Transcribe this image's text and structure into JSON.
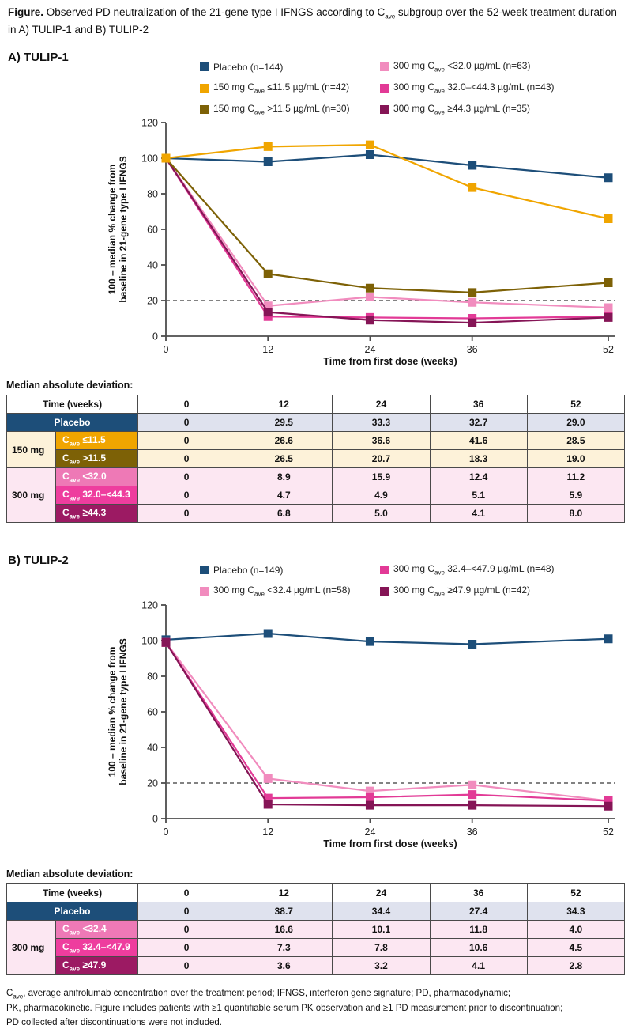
{
  "title": {
    "bold": "Figure.",
    "pre": " Observed PD neutralization of the 21-gene type I IFNGS according to C",
    "sub": "ave",
    "post": " subgroup over the 52-week treatment duration in A) TULIP-1 and B) TULIP-2"
  },
  "colors": {
    "navy": "#1d4e79",
    "gold": "#f0a500",
    "olive": "#7d6106",
    "lightpink": "#f18cbe",
    "midpink": "#e23a96",
    "maroon": "#851556",
    "table_pink1": "#ee79b6",
    "table_pink2": "#ee3d9e",
    "table_pink3": "#9c1a63",
    "placebo_row_bg": "#dfe2ee",
    "cream_bg": "#fdf2d9",
    "pink_bg": "#fce7f2"
  },
  "panels": [
    {
      "heading": "A) TULIP-1",
      "legend": [
        {
          "pre": "Placebo (n=144)",
          "sub": "",
          "post": "",
          "color": "#1d4e79"
        },
        {
          "pre": "300 mg C",
          "sub": "ave",
          "post": " <32.0 µg/mL (n=63)",
          "color": "#f18cbe"
        },
        {
          "pre": "150 mg C",
          "sub": "ave",
          "post": " ≤11.5 µg/mL (n=42)",
          "color": "#f0a500"
        },
        {
          "pre": "300 mg C",
          "sub": "ave",
          "post": " 32.0–<44.3 µg/mL (n=43)",
          "color": "#e23a96"
        },
        {
          "pre": "150 mg C",
          "sub": "ave",
          "post": " >11.5 µg/mL (n=30)",
          "color": "#7d6106"
        },
        {
          "pre": "300 mg C",
          "sub": "ave",
          "post": " ≥44.3 µg/mL (n=35)",
          "color": "#851556"
        }
      ],
      "mad_label": "Median absolute deviation:"
    },
    {
      "heading": "B) TULIP-2",
      "legend": [
        {
          "pre": "Placebo (n=149)",
          "sub": "",
          "post": "",
          "color": "#1d4e79"
        },
        {
          "pre": "300 mg C",
          "sub": "ave",
          "post": " 32.4–<47.9 µg/mL (n=48)",
          "color": "#e23a96"
        },
        {
          "pre": "300 mg C",
          "sub": "ave",
          "post": " <32.4 µg/mL (n=58)",
          "color": "#f18cbe"
        },
        {
          "pre": "300 mg C",
          "sub": "ave",
          "post": " ≥47.9 µg/mL (n=42)",
          "color": "#851556"
        }
      ],
      "mad_label": "Median absolute deviation:"
    }
  ],
  "chart_data": [
    {
      "type": "line",
      "title": "A) TULIP-1",
      "x": [
        0,
        12,
        24,
        36,
        52
      ],
      "xlabel": "Time from first dose (weeks)",
      "ylabel": "100 – median % change from baseline in 21-gene type I IFNGS",
      "ylabel_lines": [
        "100 – median % change from",
        "baseline in 21-gene type I IFNGS"
      ],
      "ylim": [
        0,
        120
      ],
      "yticks": [
        0,
        20,
        40,
        60,
        80,
        100,
        120
      ],
      "reference_line_y": 20,
      "grid": false,
      "legend_position": "top",
      "series": [
        {
          "name": "Placebo (n=144)",
          "color": "#1d4e79",
          "values": [
            100,
            98,
            102,
            96,
            89
          ]
        },
        {
          "name": "300 mg Cave <32.0 µg/mL (n=63)",
          "color": "#f18cbe",
          "values": [
            100,
            17,
            22,
            19,
            16
          ]
        },
        {
          "name": "300 mg Cave 32.0–<44.3 µg/mL (n=43)",
          "color": "#e23a96",
          "values": [
            100,
            11,
            10.5,
            10,
            11
          ]
        },
        {
          "name": "300 mg Cave ≥44.3 µg/mL (n=35)",
          "color": "#851556",
          "values": [
            100,
            13.5,
            9,
            7.5,
            10.5
          ]
        },
        {
          "name": "150 mg Cave >11.5 µg/mL (n=30)",
          "color": "#7d6106",
          "values": [
            100,
            35,
            27,
            24.5,
            30
          ]
        },
        {
          "name": "150 mg Cave ≤11.5 µg/mL (n=42)",
          "color": "#f0a500",
          "values": [
            100,
            106.5,
            107.5,
            83.5,
            66
          ]
        }
      ]
    },
    {
      "type": "line",
      "title": "B) TULIP-2",
      "x": [
        0,
        12,
        24,
        36,
        52
      ],
      "xlabel": "Time from first dose (weeks)",
      "ylabel": "100 – median % change from baseline in 21-gene type I IFNGS",
      "ylabel_lines": [
        "100 – median % change from",
        "baseline in 21-gene type I IFNGS"
      ],
      "ylim": [
        0,
        120
      ],
      "yticks": [
        0,
        20,
        40,
        60,
        80,
        100,
        120
      ],
      "reference_line_y": 20,
      "grid": false,
      "legend_position": "top",
      "series": [
        {
          "name": "Placebo (n=149)",
          "color": "#1d4e79",
          "values": [
            100.5,
            104,
            99.5,
            98,
            101
          ]
        },
        {
          "name": "300 mg Cave <32.4 µg/mL (n=58)",
          "color": "#f18cbe",
          "values": [
            99,
            22.5,
            15.5,
            19,
            10
          ]
        },
        {
          "name": "300 mg Cave 32.4–<47.9 µg/mL (n=48)",
          "color": "#e23a96",
          "values": [
            99,
            11.5,
            12,
            13.5,
            10
          ]
        },
        {
          "name": "300 mg Cave ≥47.9 µg/mL (n=42)",
          "color": "#851556",
          "values": [
            99,
            8,
            7.5,
            7.5,
            7
          ]
        }
      ]
    }
  ],
  "tables": [
    {
      "header": {
        "label": "Time (weeks)",
        "cols": [
          "0",
          "12",
          "24",
          "36",
          "52"
        ]
      },
      "placebo": {
        "label": "Placebo",
        "values": [
          "0",
          "29.5",
          "33.3",
          "32.7",
          "29.0"
        ]
      },
      "groups": [
        {
          "label": "150 mg",
          "theme": "cream",
          "rows": [
            {
              "pre": "C",
              "sub": "ave",
              "post": " ≤11.5",
              "color": "#f0a500",
              "values": [
                "0",
                "26.6",
                "36.6",
                "41.6",
                "28.5"
              ]
            },
            {
              "pre": "C",
              "sub": "ave",
              "post": " >11.5",
              "color": "#7d6106",
              "values": [
                "0",
                "26.5",
                "20.7",
                "18.3",
                "19.0"
              ]
            }
          ]
        },
        {
          "label": "300 mg",
          "theme": "pink",
          "rows": [
            {
              "pre": "C",
              "sub": "ave",
              "post": " <32.0",
              "color": "#ee79b6",
              "values": [
                "0",
                "8.9",
                "15.9",
                "12.4",
                "11.2"
              ]
            },
            {
              "pre": "C",
              "sub": "ave",
              "post": " 32.0–<44.3",
              "color": "#ee3d9e",
              "values": [
                "0",
                "4.7",
                "4.9",
                "5.1",
                "5.9"
              ]
            },
            {
              "pre": "C",
              "sub": "ave",
              "post": " ≥44.3",
              "color": "#9c1a63",
              "values": [
                "0",
                "6.8",
                "5.0",
                "4.1",
                "8.0"
              ]
            }
          ]
        }
      ]
    },
    {
      "header": {
        "label": "Time (weeks)",
        "cols": [
          "0",
          "12",
          "24",
          "36",
          "52"
        ]
      },
      "placebo": {
        "label": "Placebo",
        "values": [
          "0",
          "38.7",
          "34.4",
          "27.4",
          "34.3"
        ]
      },
      "groups": [
        {
          "label": "300 mg",
          "theme": "pink",
          "rows": [
            {
              "pre": "C",
              "sub": "ave",
              "post": " <32.4",
              "color": "#ee79b6",
              "values": [
                "0",
                "16.6",
                "10.1",
                "11.8",
                "4.0"
              ]
            },
            {
              "pre": "C",
              "sub": "ave",
              "post": " 32.4–<47.9",
              "color": "#ee3d9e",
              "values": [
                "0",
                "7.3",
                "7.8",
                "10.6",
                "4.5"
              ]
            },
            {
              "pre": "C",
              "sub": "ave",
              "post": " ≥47.9",
              "color": "#9c1a63",
              "values": [
                "0",
                "3.6",
                "3.2",
                "4.1",
                "2.8"
              ]
            }
          ]
        }
      ]
    }
  ],
  "footer": {
    "pre": "C",
    "sub": "ave",
    "line1": ", average anifrolumab concentration over the treatment period; IFNGS, interferon gene signature; PD, pharmacodynamic;",
    "line2": "PK, pharmacokinetic. Figure includes patients with ≥1 quantifiable serum PK observation and ≥1 PD measurement prior to discontinuation;",
    "line3": "PD collected after discontinuations were not included."
  }
}
